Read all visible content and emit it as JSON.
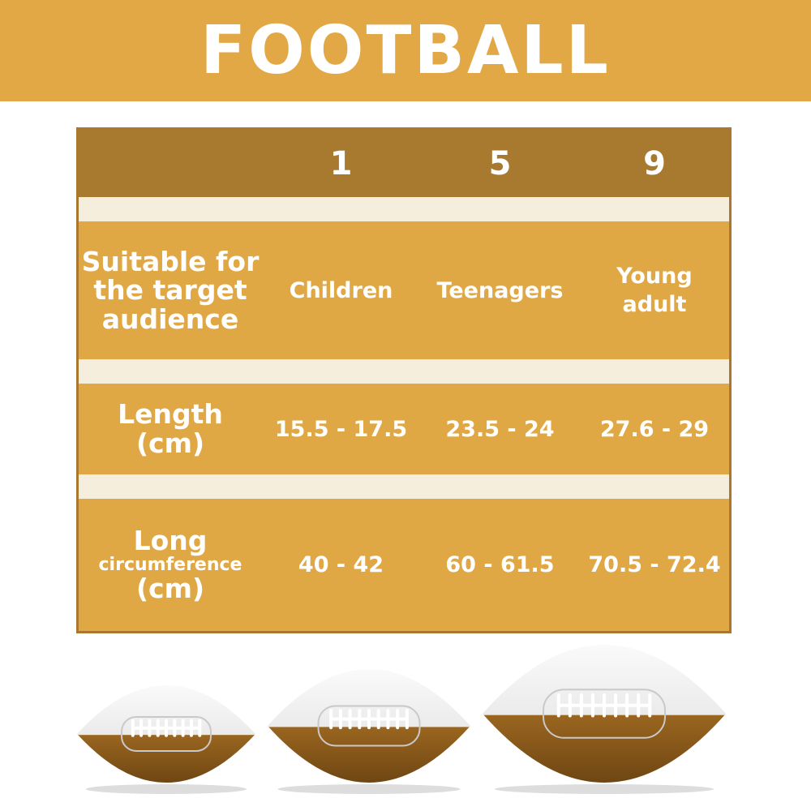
{
  "title": "FOOTBALL",
  "table": {
    "sizes": [
      "1",
      "5",
      "9"
    ],
    "rows": [
      {
        "label": "Suitable for the target audience",
        "values": [
          "Children",
          "Teenagers",
          "Young adult"
        ]
      },
      {
        "label": "Length (cm)",
        "values": [
          "15.5 - 17.5",
          "23.5 - 24",
          "27.6 - 29"
        ]
      },
      {
        "label_main": "Long",
        "label_sub": "circumference",
        "label_unit": "(cm)",
        "values": [
          "40 - 42",
          "60 - 61.5",
          "70.5 - 72.4"
        ]
      }
    ]
  },
  "colors": {
    "banner": "#E2A845",
    "header": "#A87A30",
    "cell": "#E0A845",
    "separator": "#F6EEDC",
    "ball_brown": "#8A5A1A",
    "ball_white": "#F2F2F2"
  }
}
